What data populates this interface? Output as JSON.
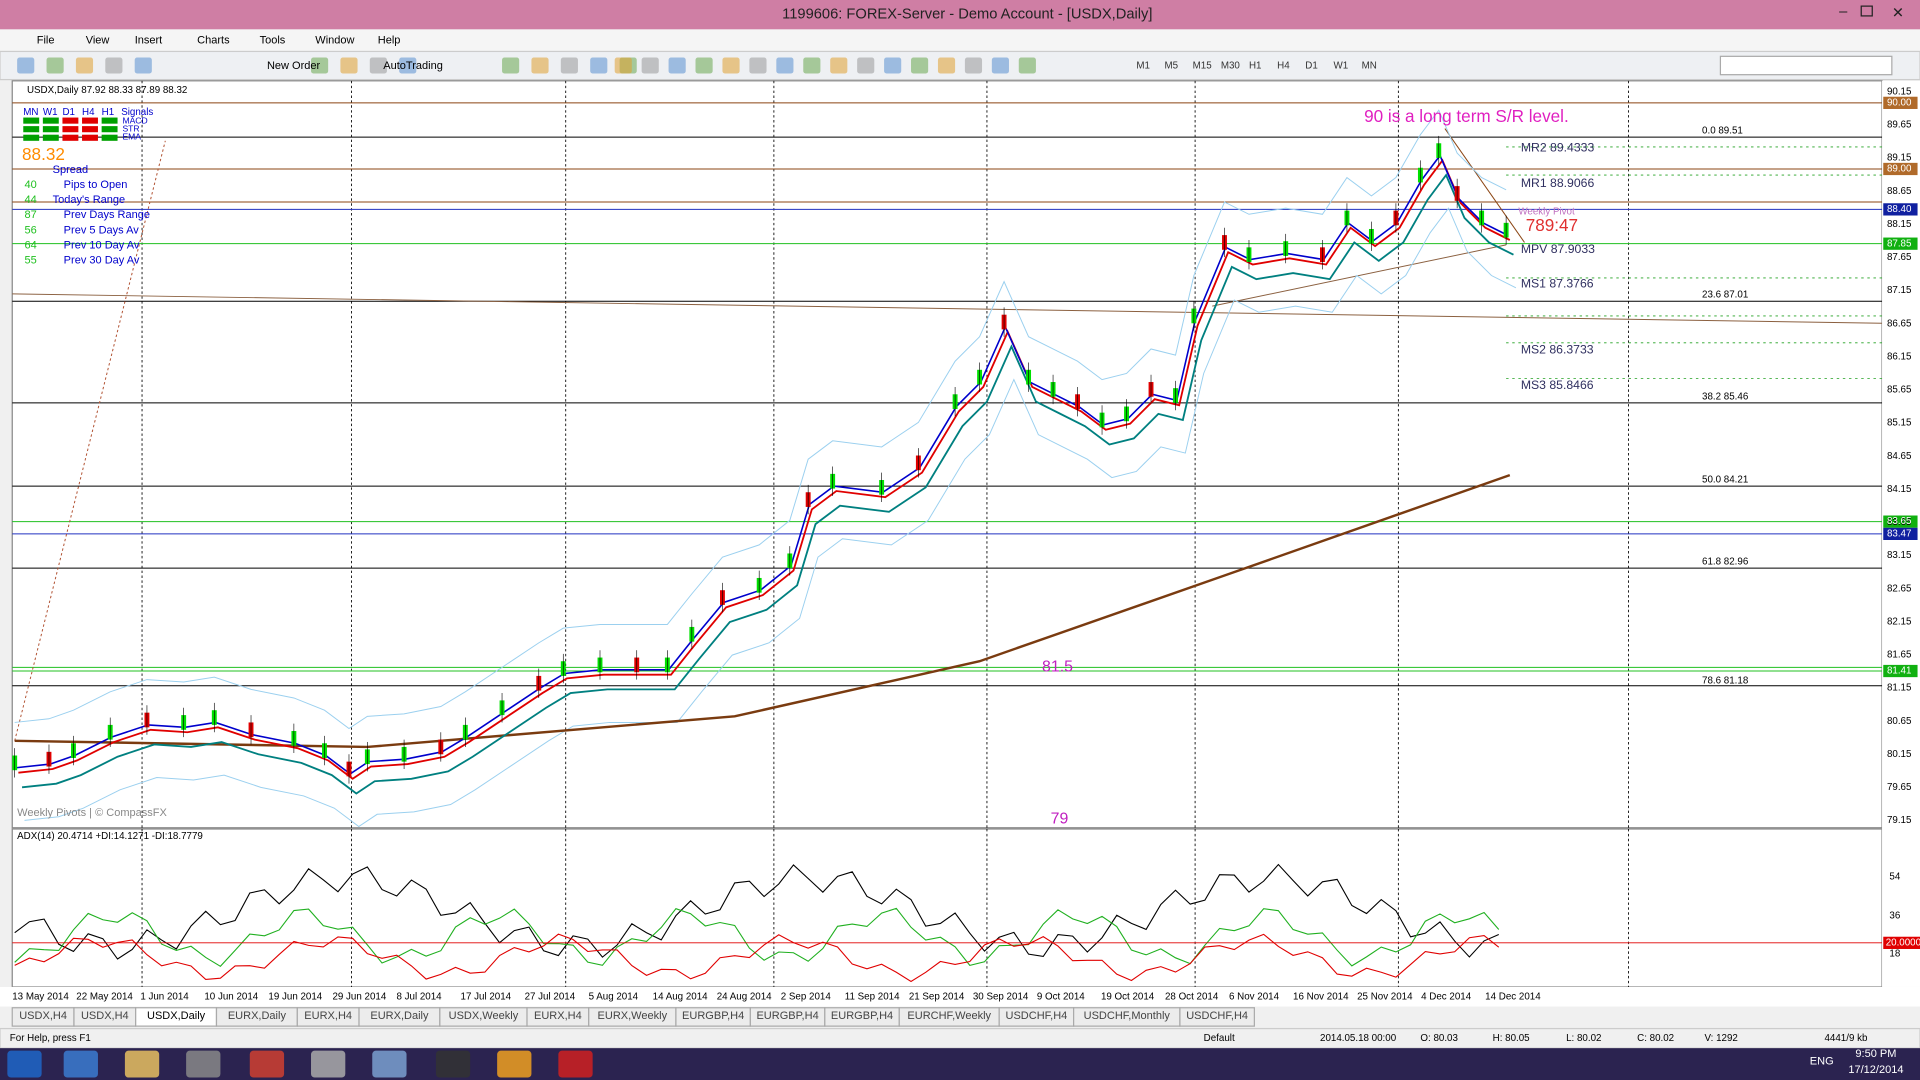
{
  "window": {
    "title": "1199606: FOREX-Server - Demo Account - [USDX,Daily]"
  },
  "menu": [
    "File",
    "View",
    "Insert",
    "Charts",
    "Tools",
    "Window",
    "Help"
  ],
  "toolbar": {
    "new_order": "New Order",
    "auto_trading": "AutoTrading",
    "timeframes": [
      "M1",
      "M5",
      "M15",
      "M30",
      "H1",
      "H4",
      "D1",
      "W1",
      "MN"
    ]
  },
  "chart": {
    "header": "USDX,Daily  87.92 88.33 87.89 88.32",
    "signal_headers": [
      "MN",
      "W1",
      "D1",
      "H4",
      "H1",
      "Signals"
    ],
    "signal_rows": [
      "MACD",
      "STR",
      "EMA"
    ],
    "price": "88.32",
    "spread": "Spread",
    "stats": [
      {
        "value": "40",
        "label": "Pips to Open"
      },
      {
        "value": "44",
        "label": "Today's Range"
      },
      {
        "value": "87",
        "label": "Prev Days Range"
      },
      {
        "value": "56",
        "label": "Prev 5 Days Av"
      },
      {
        "value": "64",
        "label": "Prev 10 Day Av"
      },
      {
        "value": "55",
        "label": "Prev 30 Day Av"
      }
    ],
    "watermark": "Weekly Pivots | © CompassFX",
    "annotations": [
      "90 is a long term S/R level.",
      "81.5",
      "79"
    ],
    "pivots": [
      "MR2  89.4333",
      "MR1  88.9066",
      "MPV  87.9033",
      "MS1  87.3766",
      "MS2  86.3733",
      "MS3  85.8466"
    ],
    "weekly_pivot": "Weekly Pivot",
    "countdown": "789:47",
    "fibs": [
      "0.0  89.51",
      "23.6  87.01",
      "38.2  85.46",
      "50.0  84.21",
      "61.8  82.96",
      "78.6  81.18"
    ],
    "price_axis": [
      "90.15",
      "89.65",
      "89.15",
      "88.65",
      "88.15",
      "87.65",
      "87.15",
      "86.65",
      "86.15",
      "85.65",
      "85.15",
      "84.65",
      "84.15",
      "83.65",
      "83.15",
      "82.65",
      "82.15",
      "81.65",
      "81.15",
      "80.65",
      "80.15",
      "79.65",
      "79.15"
    ],
    "highlighted_prices": [
      "90.00",
      "89.00",
      "88.40",
      "87.85",
      "83.65",
      "83.47",
      "81.41"
    ]
  },
  "indicator": {
    "header": "ADX(14) 20.4714 +DI:14.1271 -DI:18.7779",
    "axis": [
      "54",
      "36",
      "18"
    ],
    "level": "20.0000"
  },
  "dates": [
    "13 May 2014",
    "22 May 2014",
    "1 Jun 2014",
    "10 Jun 2014",
    "19 Jun 2014",
    "29 Jun 2014",
    "8 Jul 2014",
    "17 Jul 2014",
    "27 Jul 2014",
    "5 Aug 2014",
    "14 Aug 2014",
    "24 Aug 2014",
    "2 Sep 2014",
    "11 Sep 2014",
    "21 Sep 2014",
    "30 Sep 2014",
    "9 Oct 2014",
    "19 Oct 2014",
    "28 Oct 2014",
    "6 Nov 2014",
    "16 Nov 2014",
    "25 Nov 2014",
    "4 Dec 2014",
    "14 Dec 2014"
  ],
  "tabs": [
    "USDX,H4",
    "USDX,H4",
    "USDX,Daily",
    "EURX,Daily",
    "EURX,H4",
    "EURX,Daily",
    "USDX,Weekly",
    "EURX,H4",
    "EURX,Weekly",
    "EURGBP,H4",
    "EURGBP,H4",
    "EURGBP,H4",
    "EURCHF,Weekly",
    "USDCHF,H4",
    "USDCHF,Monthly",
    "USDCHF,H4"
  ],
  "status": [
    "For Help, press F1",
    "Default",
    "2014.05.18 00:00",
    "O: 80.03",
    "H: 80.05",
    "L: 80.02",
    "C: 80.02",
    "V: 1292",
    "4441/9 kb"
  ],
  "taskbar": {
    "language": "ENG",
    "time": "9:50 PM",
    "date": "17/12/2014"
  }
}
